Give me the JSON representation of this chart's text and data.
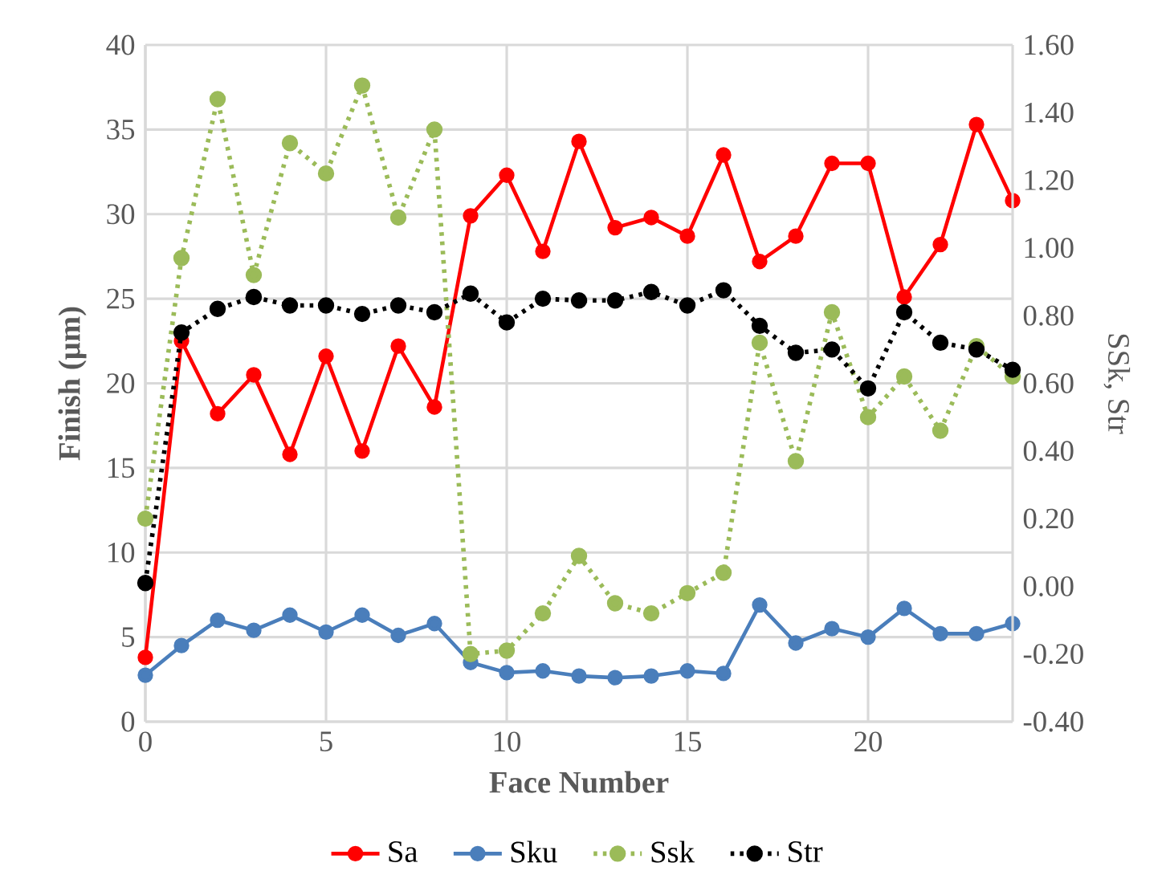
{
  "chart_data": {
    "type": "line",
    "xlabel": "Face Number",
    "ylabel": "Finish (µm)",
    "y2label": "SSk, Str",
    "x": [
      0,
      1,
      2,
      3,
      4,
      5,
      6,
      7,
      8,
      9,
      10,
      11,
      12,
      13,
      14,
      15,
      16,
      17,
      18,
      19,
      20,
      21,
      22,
      23,
      24
    ],
    "xlim": [
      0,
      24
    ],
    "xticks": [
      0,
      5,
      10,
      15,
      20
    ],
    "ylim": [
      0,
      40
    ],
    "yticks": [
      0,
      5,
      10,
      15,
      20,
      25,
      30,
      35,
      40
    ],
    "y2lim": [
      -0.4,
      1.6
    ],
    "y2ticks": [
      {
        "value": -0.4,
        "label": "-0.40"
      },
      {
        "value": -0.2,
        "label": "-0.20"
      },
      {
        "value": 0,
        "label": "0.00"
      },
      {
        "value": 0.2,
        "label": "0.20"
      },
      {
        "value": 0.4,
        "label": "0.40"
      },
      {
        "value": 0.6,
        "label": "0.60"
      },
      {
        "value": 0.8,
        "label": "0.80"
      },
      {
        "value": 1.0,
        "label": "1.00"
      },
      {
        "value": 1.2,
        "label": "1.20"
      },
      {
        "value": 1.4,
        "label": "1.40"
      },
      {
        "value": 1.6,
        "label": "1.60"
      }
    ],
    "grid": true,
    "legend": "bottom",
    "marker": "circle",
    "series": [
      {
        "name": "Sa",
        "color": "#ff0000",
        "line_style": "solid",
        "values": [
          3.8,
          22.5,
          18.2,
          20.5,
          15.8,
          21.6,
          16.0,
          22.2,
          18.6,
          29.9,
          32.3,
          27.8,
          34.3,
          29.2,
          29.8,
          28.7,
          33.5,
          27.2,
          28.7,
          33.0,
          33.0,
          25.1,
          28.2,
          35.3,
          30.8
        ]
      },
      {
        "name": "Sku",
        "color": "#4a7ebb",
        "line_style": "solid",
        "values": [
          2.75,
          4.5,
          6.0,
          5.4,
          6.3,
          5.3,
          6.3,
          5.1,
          5.8,
          3.5,
          2.9,
          3.0,
          2.7,
          2.6,
          2.7,
          3.0,
          2.85,
          6.9,
          4.65,
          5.5,
          5.0,
          6.7,
          5.2,
          5.2,
          5.8
        ]
      },
      {
        "name": "Ssk",
        "color": "#9bbb59",
        "line_style": "dotted",
        "axis": "y2",
        "values": [
          0.2,
          0.97,
          1.44,
          0.92,
          1.31,
          1.22,
          1.48,
          1.09,
          1.35,
          -0.2,
          -0.19,
          -0.08,
          0.09,
          -0.05,
          -0.08,
          -0.02,
          0.04,
          0.72,
          0.37,
          0.81,
          0.5,
          0.62,
          0.46,
          0.71,
          0.62
        ]
      },
      {
        "name": "Str",
        "color": "#000000",
        "line_style": "dotted",
        "axis": "y2",
        "values": [
          0.01,
          0.75,
          0.82,
          0.855,
          0.83,
          0.83,
          0.805,
          0.83,
          0.81,
          0.865,
          0.78,
          0.85,
          0.845,
          0.845,
          0.87,
          0.83,
          0.875,
          0.77,
          0.69,
          0.7,
          0.585,
          0.81,
          0.72,
          0.7,
          0.64
        ]
      }
    ]
  }
}
